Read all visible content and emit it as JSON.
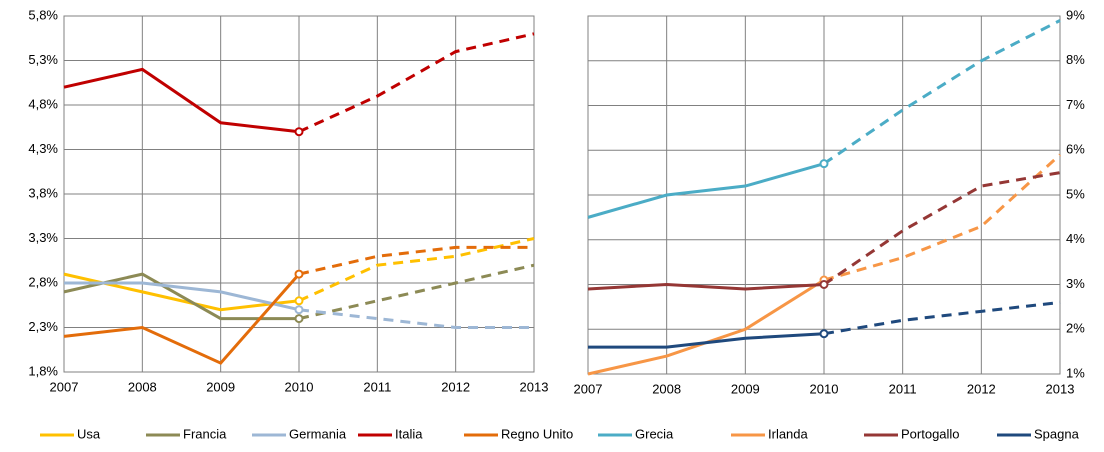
{
  "chart_data": [
    {
      "type": "line",
      "x": [
        2007,
        2008,
        2009,
        2010,
        2011,
        2012,
        2013
      ],
      "xlim": [
        2007,
        2013
      ],
      "xticks": [
        2007,
        2008,
        2009,
        2010,
        2011,
        2012,
        2013
      ],
      "ylim": [
        1.8,
        5.8
      ],
      "yticks": [
        {
          "value": 1.8,
          "label": "1,8%"
        },
        {
          "value": 2.3,
          "label": "2,3%"
        },
        {
          "value": 2.8,
          "label": "2,8%"
        },
        {
          "value": 3.3,
          "label": "3,3%"
        },
        {
          "value": 3.8,
          "label": "3,8%"
        },
        {
          "value": 4.3,
          "label": "4,3%"
        },
        {
          "value": 4.8,
          "label": "4,8%"
        },
        {
          "value": 5.3,
          "label": "5,3%"
        },
        {
          "value": 5.8,
          "label": "5,8%"
        }
      ],
      "grid": true,
      "forecast_from": 2010,
      "series": [
        {
          "name": "Usa",
          "color": "#ffc000",
          "values": [
            2.9,
            2.7,
            2.5,
            2.6,
            3.0,
            3.1,
            3.3
          ]
        },
        {
          "name": "Francia",
          "color": "#8c8a55",
          "values": [
            2.7,
            2.9,
            2.4,
            2.4,
            2.6,
            2.8,
            3.0
          ]
        },
        {
          "name": "Germania",
          "color": "#9db7d5",
          "values": [
            2.8,
            2.8,
            2.7,
            2.5,
            2.4,
            2.3,
            2.3
          ]
        },
        {
          "name": "Italia",
          "color": "#c00000",
          "values": [
            5.0,
            5.2,
            4.6,
            4.5,
            4.9,
            5.4,
            5.6
          ]
        },
        {
          "name": "Regno Unito",
          "color": "#e36c0a",
          "values": [
            2.2,
            2.3,
            1.9,
            2.9,
            3.1,
            3.2,
            3.2
          ]
        }
      ]
    },
    {
      "type": "line",
      "x": [
        2007,
        2008,
        2009,
        2010,
        2011,
        2012,
        2013
      ],
      "xlim": [
        2007,
        2013
      ],
      "xticks": [
        2007,
        2008,
        2009,
        2010,
        2011,
        2012,
        2013
      ],
      "y2lim": [
        1,
        9
      ],
      "y2ticks": [
        {
          "value": 1,
          "label": "1%"
        },
        {
          "value": 2,
          "label": "2%"
        },
        {
          "value": 3,
          "label": "3%"
        },
        {
          "value": 4,
          "label": "4%"
        },
        {
          "value": 5,
          "label": "5%"
        },
        {
          "value": 6,
          "label": "6%"
        },
        {
          "value": 7,
          "label": "7%"
        },
        {
          "value": 8,
          "label": "8%"
        },
        {
          "value": 9,
          "label": "9%"
        }
      ],
      "grid": true,
      "forecast_from": 2010,
      "series": [
        {
          "name": "Grecia",
          "color": "#4bacc6",
          "axis": "y2",
          "values": [
            4.5,
            5.0,
            5.2,
            5.7,
            6.9,
            8.0,
            8.9
          ]
        },
        {
          "name": "Irlanda",
          "color": "#f79646",
          "axis": "y2",
          "values": [
            1.0,
            1.4,
            2.0,
            3.1,
            3.6,
            4.3,
            5.9
          ]
        },
        {
          "name": "Portogallo",
          "color": "#953735",
          "axis": "y2",
          "values": [
            2.9,
            3.0,
            2.9,
            3.0,
            4.2,
            5.2,
            5.5
          ]
        },
        {
          "name": "Spagna",
          "color": "#1f497d",
          "axis": "y2",
          "values": [
            1.6,
            1.6,
            1.8,
            1.9,
            2.2,
            2.4,
            2.6
          ]
        }
      ]
    }
  ]
}
